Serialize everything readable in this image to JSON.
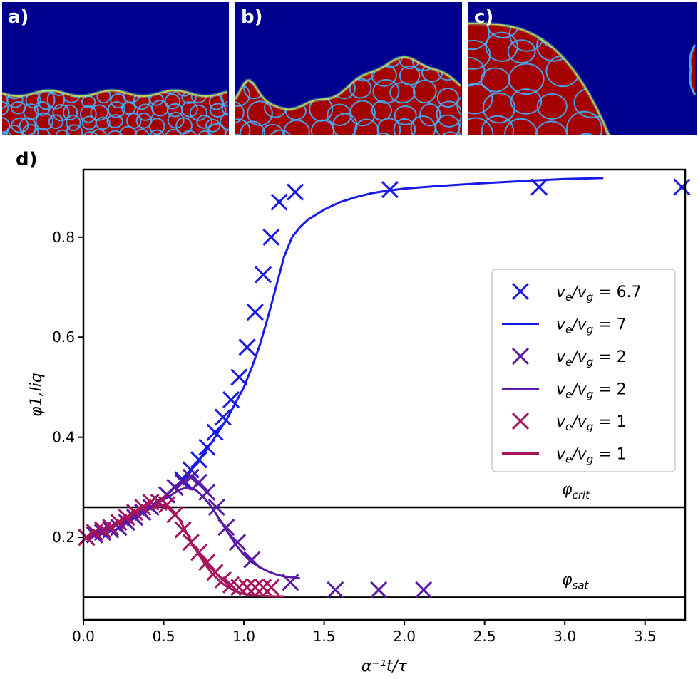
{
  "panels": [
    {
      "label": "a)",
      "front": "flat"
    },
    {
      "label": "b)",
      "front": "wavy"
    },
    {
      "label": "c)",
      "front": "dome"
    }
  ],
  "colors": {
    "map_background": "#00008f",
    "map_cell": "#a50000",
    "map_edge": "#ffe000",
    "series_ve_67": "#1a1ae6",
    "series_ve_2": "#5a1aa8",
    "series_ve_1": "#a8145c",
    "reference_line": "#000000"
  },
  "chart_data": {
    "panel_label": "d)",
    "type": "scatter",
    "xlabel": "α⁻¹t/τ",
    "ylabel": "φ1,liq",
    "xlim": [
      0.0,
      3.75
    ],
    "ylim": [
      0.035,
      0.935
    ],
    "xticks": [
      "0.0",
      "0.5",
      "1.0",
      "1.5",
      "2.0",
      "2.5",
      "3.0",
      "3.5"
    ],
    "xtick_values": [
      0.0,
      0.5,
      1.0,
      1.5,
      2.0,
      2.5,
      3.0,
      3.5
    ],
    "yticks": [
      "0.2",
      "0.4",
      "0.6",
      "0.8"
    ],
    "ytick_values": [
      0.2,
      0.4,
      0.6,
      0.8
    ],
    "grid": false,
    "legend_position": "right",
    "hlines": [
      {
        "name": "φcrit",
        "y": 0.26
      },
      {
        "name": "φsat",
        "y": 0.08
      }
    ],
    "series": [
      {
        "name": "ve/vg = 6.7",
        "mode": "markers",
        "colorKey": "series_ve_67",
        "legend_main": "v",
        "legend_sub1": "e",
        "legend_mid": "/v",
        "legend_sub2": "g",
        "legend_val": " = 6.7",
        "x": [
          0.02,
          0.07,
          0.12,
          0.17,
          0.22,
          0.27,
          0.32,
          0.37,
          0.42,
          0.47,
          0.52,
          0.57,
          0.62,
          0.67,
          0.72,
          0.77,
          0.82,
          0.87,
          0.92,
          0.97,
          1.02,
          1.07,
          1.12,
          1.17,
          1.22,
          1.32,
          1.91,
          2.84,
          3.73
        ],
        "y": [
          0.2,
          0.205,
          0.21,
          0.215,
          0.22,
          0.23,
          0.24,
          0.25,
          0.26,
          0.27,
          0.285,
          0.3,
          0.315,
          0.335,
          0.355,
          0.38,
          0.41,
          0.44,
          0.475,
          0.52,
          0.58,
          0.65,
          0.725,
          0.8,
          0.87,
          0.89,
          0.895,
          0.9,
          0.9
        ]
      },
      {
        "name": "ve/vg = 7",
        "mode": "line",
        "colorKey": "series_ve_67",
        "legend_main": "v",
        "legend_sub1": "e",
        "legend_mid": "/v",
        "legend_sub2": "g",
        "legend_val": " = 7",
        "x": [
          0.0,
          0.2,
          0.4,
          0.5,
          0.6,
          0.7,
          0.8,
          0.9,
          1.0,
          1.05,
          1.1,
          1.15,
          1.2,
          1.25,
          1.3,
          1.35,
          1.4,
          1.5,
          1.6,
          1.7,
          1.8,
          1.9,
          2.0,
          2.2,
          2.5,
          2.8,
          3.0,
          3.24
        ],
        "y": [
          0.195,
          0.215,
          0.255,
          0.28,
          0.31,
          0.345,
          0.39,
          0.44,
          0.5,
          0.54,
          0.585,
          0.64,
          0.7,
          0.76,
          0.8,
          0.82,
          0.835,
          0.855,
          0.87,
          0.88,
          0.888,
          0.893,
          0.897,
          0.902,
          0.908,
          0.913,
          0.916,
          0.918
        ]
      },
      {
        "name": "ve/vg = 2",
        "mode": "markers",
        "colorKey": "series_ve_2",
        "legend_main": "v",
        "legend_sub1": "e",
        "legend_mid": "/v",
        "legend_sub2": "g",
        "legend_val": " = 2",
        "x": [
          0.02,
          0.07,
          0.12,
          0.17,
          0.22,
          0.27,
          0.32,
          0.37,
          0.42,
          0.47,
          0.52,
          0.57,
          0.62,
          0.67,
          0.72,
          0.77,
          0.83,
          0.89,
          0.96,
          1.05,
          1.29,
          1.57,
          1.84,
          2.12
        ],
        "y": [
          0.2,
          0.205,
          0.21,
          0.215,
          0.22,
          0.23,
          0.24,
          0.25,
          0.26,
          0.27,
          0.285,
          0.3,
          0.31,
          0.32,
          0.31,
          0.29,
          0.26,
          0.22,
          0.19,
          0.155,
          0.11,
          0.095,
          0.095,
          0.095
        ]
      },
      {
        "name": "ve/vg = 2",
        "mode": "line",
        "colorKey": "series_ve_2",
        "legend_main": "v",
        "legend_sub1": "e",
        "legend_mid": "/v",
        "legend_sub2": "g",
        "legend_val": " = 2",
        "x": [
          0.0,
          0.2,
          0.4,
          0.5,
          0.6,
          0.65,
          0.7,
          0.75,
          0.8,
          0.85,
          0.9,
          0.95,
          1.0,
          1.05,
          1.1,
          1.15,
          1.2,
          1.25,
          1.3,
          1.35
        ],
        "y": [
          0.195,
          0.215,
          0.255,
          0.275,
          0.295,
          0.3,
          0.295,
          0.28,
          0.26,
          0.235,
          0.21,
          0.185,
          0.165,
          0.15,
          0.14,
          0.132,
          0.126,
          0.122,
          0.12,
          0.118
        ]
      },
      {
        "name": "ve/vg = 1",
        "mode": "markers",
        "colorKey": "series_ve_1",
        "legend_main": "v",
        "legend_sub1": "e",
        "legend_mid": "/v",
        "legend_sub2": "g",
        "legend_val": " = 1",
        "x": [
          0.02,
          0.07,
          0.12,
          0.17,
          0.22,
          0.27,
          0.32,
          0.37,
          0.42,
          0.47,
          0.52,
          0.57,
          0.62,
          0.67,
          0.72,
          0.77,
          0.82,
          0.87,
          0.92,
          0.97,
          1.02,
          1.07,
          1.12,
          1.17
        ],
        "y": [
          0.2,
          0.21,
          0.215,
          0.22,
          0.23,
          0.24,
          0.25,
          0.26,
          0.27,
          0.27,
          0.265,
          0.245,
          0.215,
          0.19,
          0.17,
          0.15,
          0.13,
          0.115,
          0.105,
          0.1,
          0.1,
          0.1,
          0.1,
          0.1
        ]
      },
      {
        "name": "ve/vg = 1",
        "mode": "line",
        "colorKey": "series_ve_1",
        "legend_main": "v",
        "legend_sub1": "e",
        "legend_mid": "/v",
        "legend_sub2": "g",
        "legend_val": " = 1",
        "x": [
          0.0,
          0.1,
          0.2,
          0.3,
          0.4,
          0.45,
          0.5,
          0.55,
          0.6,
          0.65,
          0.7,
          0.75,
          0.8,
          0.85,
          0.9,
          0.95,
          1.0,
          1.1,
          1.2,
          1.25
        ],
        "y": [
          0.195,
          0.21,
          0.225,
          0.24,
          0.255,
          0.262,
          0.265,
          0.255,
          0.235,
          0.205,
          0.175,
          0.15,
          0.128,
          0.112,
          0.1,
          0.092,
          0.087,
          0.083,
          0.082,
          0.082
        ]
      }
    ]
  }
}
